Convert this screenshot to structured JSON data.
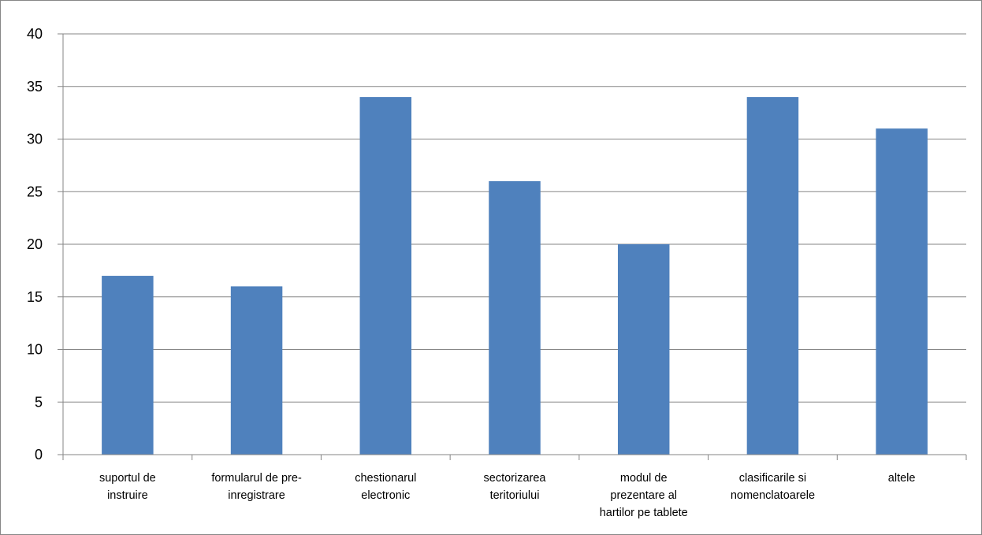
{
  "chart_data": {
    "type": "bar",
    "title": "",
    "xlabel": "",
    "ylabel": "",
    "categories": [
      [
        "suportul de",
        "instruire"
      ],
      [
        "formularul de pre-",
        "inregistrare"
      ],
      [
        "chestionarul",
        "electronic"
      ],
      [
        "sectorizarea",
        "teritoriului"
      ],
      [
        "modul de",
        "prezentare al",
        "hartilor pe tablete"
      ],
      [
        "clasificarile si",
        "nomenclatoarele"
      ],
      [
        "altele"
      ]
    ],
    "values": [
      17,
      16,
      34,
      26,
      20,
      34,
      31
    ],
    "ylim": [
      0,
      40
    ],
    "yticks": [
      0,
      5,
      10,
      15,
      20,
      25,
      30,
      35,
      40
    ],
    "grid": true,
    "legend": "none",
    "colors": {
      "bar": "#4F81BD",
      "grid": "#868686",
      "axis": "#868686"
    }
  }
}
